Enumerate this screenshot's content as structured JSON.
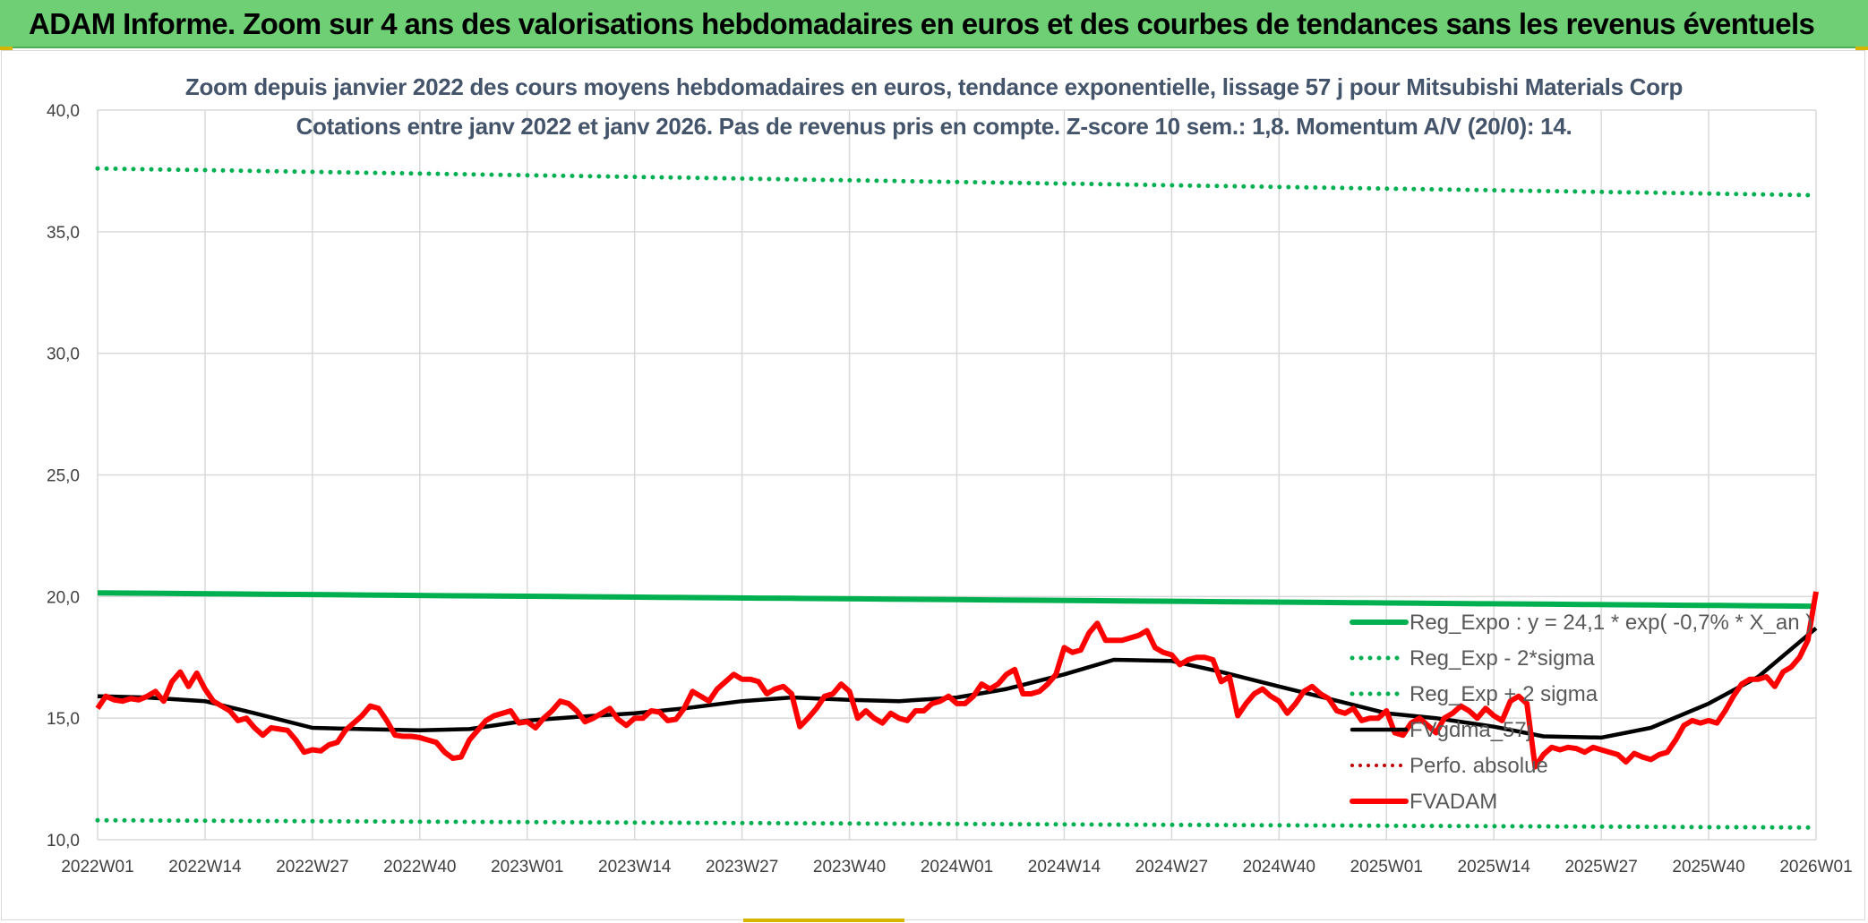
{
  "header": {
    "title": "ADAM Informe. Zoom sur 4 ans des valorisations hebdomadaires en euros et des courbes de tendances sans les revenus éventuels"
  },
  "chart_data": {
    "type": "line",
    "title": "Zoom depuis janvier 2022 des cours moyens hebdomadaires en euros, tendance exponentielle, lissage 57 j pour Mitsubishi Materials Corp",
    "subtitle": "Cotations entre janv 2022 et janv 2026. Pas de revenus pris en compte. Z-score 10 sem.: 1,8. Momentum A/V (20/0): 14.",
    "ylim": [
      10,
      40
    ],
    "yticks": [
      "10,0",
      "15,0",
      "20,0",
      "25,0",
      "30,0",
      "35,0",
      "40,0"
    ],
    "xticks": [
      "2022W01",
      "2022W14",
      "2022W27",
      "2022W40",
      "2023W01",
      "2023W14",
      "2023W27",
      "2023W40",
      "2024W01",
      "2024W14",
      "2024W27",
      "2024W40",
      "2025W01",
      "2025W14",
      "2025W27",
      "2025W40",
      "2026W01"
    ],
    "week_count": 209,
    "grid": true,
    "legend_position": "right",
    "colors": {
      "reg_expo": "#00b050",
      "sigma": "#00b050",
      "fvgdma": "#000000",
      "perfo": "#c00000",
      "fvadam": "#ff0000",
      "grid": "#d9d9d9"
    },
    "series": [
      {
        "name": "Reg_Expo : y = 24,1 * exp( -0,7% *  X_an )",
        "style": "solid-thick",
        "start": 20.15,
        "end": 19.6
      },
      {
        "name": "Reg_Exp - 2*sigma",
        "style": "dotted",
        "start": 10.8,
        "end": 10.5
      },
      {
        "name": "Reg_Exp + 2 sigma",
        "style": "dotted",
        "start": 37.6,
        "end": 36.5
      },
      {
        "name": "FVgdma_57j",
        "style": "solid-medium",
        "points": [
          [
            0,
            15.9
          ],
          [
            6,
            15.85
          ],
          [
            13,
            15.7
          ],
          [
            19,
            15.2
          ],
          [
            26,
            14.6
          ],
          [
            32,
            14.55
          ],
          [
            39,
            14.5
          ],
          [
            45,
            14.55
          ],
          [
            52,
            14.9
          ],
          [
            58,
            15.05
          ],
          [
            65,
            15.2
          ],
          [
            71,
            15.4
          ],
          [
            78,
            15.7
          ],
          [
            84,
            15.85
          ],
          [
            91,
            15.75
          ],
          [
            97,
            15.7
          ],
          [
            104,
            15.85
          ],
          [
            110,
            16.2
          ],
          [
            117,
            16.8
          ],
          [
            123,
            17.4
          ],
          [
            130,
            17.35
          ],
          [
            136,
            16.9
          ],
          [
            143,
            16.3
          ],
          [
            149,
            15.8
          ],
          [
            156,
            15.2
          ],
          [
            162,
            15.0
          ],
          [
            169,
            14.65
          ],
          [
            175,
            14.25
          ],
          [
            182,
            14.2
          ],
          [
            188,
            14.6
          ],
          [
            195,
            15.6
          ],
          [
            201,
            16.7
          ],
          [
            208,
            18.7
          ]
        ]
      },
      {
        "name": "Perfo. absolue",
        "style": "dotted-red",
        "points": []
      },
      {
        "name": "FVADAM",
        "style": "solid-thick-red",
        "points": [
          [
            0,
            15.4
          ],
          [
            1,
            15.9
          ],
          [
            2,
            15.75
          ],
          [
            3,
            15.7
          ],
          [
            4,
            15.8
          ],
          [
            5,
            15.75
          ],
          [
            6,
            15.9
          ],
          [
            7,
            16.1
          ],
          [
            8,
            15.7
          ],
          [
            9,
            16.5
          ],
          [
            10,
            16.9
          ],
          [
            11,
            16.3
          ],
          [
            12,
            16.85
          ],
          [
            13,
            16.2
          ],
          [
            14,
            15.7
          ],
          [
            15,
            15.5
          ],
          [
            16,
            15.3
          ],
          [
            17,
            14.9
          ],
          [
            18,
            15.0
          ],
          [
            19,
            14.6
          ],
          [
            20,
            14.3
          ],
          [
            21,
            14.6
          ],
          [
            22,
            14.55
          ],
          [
            23,
            14.5
          ],
          [
            24,
            14.1
          ],
          [
            25,
            13.6
          ],
          [
            26,
            13.7
          ],
          [
            27,
            13.65
          ],
          [
            28,
            13.9
          ],
          [
            29,
            14.0
          ],
          [
            30,
            14.5
          ],
          [
            31,
            14.8
          ],
          [
            32,
            15.1
          ],
          [
            33,
            15.5
          ],
          [
            34,
            15.4
          ],
          [
            35,
            14.9
          ],
          [
            36,
            14.3
          ],
          [
            37,
            14.25
          ],
          [
            38,
            14.25
          ],
          [
            39,
            14.2
          ],
          [
            40,
            14.1
          ],
          [
            41,
            14.0
          ],
          [
            42,
            13.6
          ],
          [
            43,
            13.35
          ],
          [
            44,
            13.4
          ],
          [
            45,
            14.1
          ],
          [
            46,
            14.5
          ],
          [
            47,
            14.9
          ],
          [
            48,
            15.1
          ],
          [
            49,
            15.2
          ],
          [
            50,
            15.3
          ],
          [
            51,
            14.8
          ],
          [
            52,
            14.85
          ],
          [
            53,
            14.6
          ],
          [
            54,
            15.0
          ],
          [
            55,
            15.3
          ],
          [
            56,
            15.7
          ],
          [
            57,
            15.6
          ],
          [
            58,
            15.3
          ],
          [
            59,
            14.85
          ],
          [
            60,
            15.0
          ],
          [
            61,
            15.2
          ],
          [
            62,
            15.4
          ],
          [
            63,
            14.95
          ],
          [
            64,
            14.7
          ],
          [
            65,
            15.0
          ],
          [
            66,
            15.0
          ],
          [
            67,
            15.3
          ],
          [
            68,
            15.25
          ],
          [
            69,
            14.9
          ],
          [
            70,
            14.95
          ],
          [
            71,
            15.4
          ],
          [
            72,
            16.1
          ],
          [
            73,
            15.9
          ],
          [
            74,
            15.7
          ],
          [
            75,
            16.2
          ],
          [
            76,
            16.5
          ],
          [
            77,
            16.8
          ],
          [
            78,
            16.6
          ],
          [
            79,
            16.6
          ],
          [
            80,
            16.5
          ],
          [
            81,
            16.0
          ],
          [
            82,
            16.2
          ],
          [
            83,
            16.3
          ],
          [
            84,
            16.0
          ],
          [
            85,
            14.65
          ],
          [
            86,
            15.0
          ],
          [
            87,
            15.4
          ],
          [
            88,
            15.9
          ],
          [
            89,
            16.0
          ],
          [
            90,
            16.4
          ],
          [
            91,
            16.1
          ],
          [
            92,
            15.0
          ],
          [
            93,
            15.3
          ],
          [
            94,
            15.0
          ],
          [
            95,
            14.8
          ],
          [
            96,
            15.2
          ],
          [
            97,
            15.0
          ],
          [
            98,
            14.9
          ],
          [
            99,
            15.3
          ],
          [
            100,
            15.3
          ],
          [
            101,
            15.6
          ],
          [
            102,
            15.7
          ],
          [
            103,
            15.9
          ],
          [
            104,
            15.6
          ],
          [
            105,
            15.6
          ],
          [
            106,
            15.9
          ],
          [
            107,
            16.4
          ],
          [
            108,
            16.2
          ],
          [
            109,
            16.4
          ],
          [
            110,
            16.8
          ],
          [
            111,
            17.0
          ],
          [
            112,
            16.0
          ],
          [
            113,
            16.0
          ],
          [
            114,
            16.1
          ],
          [
            115,
            16.4
          ],
          [
            116,
            16.8
          ],
          [
            117,
            17.9
          ],
          [
            118,
            17.7
          ],
          [
            119,
            17.8
          ],
          [
            120,
            18.5
          ],
          [
            121,
            18.9
          ],
          [
            122,
            18.2
          ],
          [
            123,
            18.2
          ],
          [
            124,
            18.2
          ],
          [
            125,
            18.3
          ],
          [
            126,
            18.4
          ],
          [
            127,
            18.6
          ],
          [
            128,
            17.9
          ],
          [
            129,
            17.7
          ],
          [
            130,
            17.6
          ],
          [
            131,
            17.2
          ],
          [
            132,
            17.4
          ],
          [
            133,
            17.5
          ],
          [
            134,
            17.5
          ],
          [
            135,
            17.4
          ],
          [
            136,
            16.5
          ],
          [
            137,
            16.7
          ],
          [
            138,
            15.1
          ],
          [
            139,
            15.6
          ],
          [
            140,
            16.0
          ],
          [
            141,
            16.2
          ],
          [
            142,
            15.9
          ],
          [
            143,
            15.7
          ],
          [
            144,
            15.2
          ],
          [
            145,
            15.6
          ],
          [
            146,
            16.1
          ],
          [
            147,
            16.3
          ],
          [
            148,
            16.0
          ],
          [
            149,
            15.8
          ],
          [
            150,
            15.3
          ],
          [
            151,
            15.2
          ],
          [
            152,
            15.4
          ],
          [
            153,
            14.9
          ],
          [
            154,
            15.0
          ],
          [
            155,
            15.0
          ],
          [
            156,
            15.3
          ],
          [
            157,
            14.4
          ],
          [
            158,
            14.3
          ],
          [
            159,
            14.8
          ],
          [
            160,
            15.0
          ],
          [
            161,
            14.7
          ],
          [
            162,
            14.4
          ],
          [
            163,
            15.0
          ],
          [
            164,
            15.2
          ],
          [
            165,
            15.5
          ],
          [
            166,
            15.3
          ],
          [
            167,
            15.0
          ],
          [
            168,
            15.4
          ],
          [
            169,
            15.1
          ],
          [
            170,
            14.9
          ],
          [
            171,
            15.7
          ],
          [
            172,
            15.9
          ],
          [
            173,
            15.6
          ],
          [
            174,
            13.0
          ],
          [
            175,
            13.5
          ],
          [
            176,
            13.8
          ],
          [
            177,
            13.7
          ],
          [
            178,
            13.8
          ],
          [
            179,
            13.75
          ],
          [
            180,
            13.6
          ],
          [
            181,
            13.8
          ],
          [
            182,
            13.7
          ],
          [
            183,
            13.6
          ],
          [
            184,
            13.5
          ],
          [
            185,
            13.2
          ],
          [
            186,
            13.55
          ],
          [
            187,
            13.4
          ],
          [
            188,
            13.3
          ],
          [
            189,
            13.5
          ],
          [
            190,
            13.6
          ],
          [
            191,
            14.1
          ],
          [
            192,
            14.7
          ],
          [
            193,
            14.9
          ],
          [
            194,
            14.8
          ],
          [
            195,
            14.9
          ],
          [
            196,
            14.8
          ],
          [
            197,
            15.3
          ],
          [
            198,
            15.9
          ],
          [
            199,
            16.4
          ],
          [
            200,
            16.6
          ],
          [
            201,
            16.6
          ],
          [
            202,
            16.7
          ],
          [
            203,
            16.3
          ],
          [
            204,
            16.9
          ],
          [
            205,
            17.1
          ],
          [
            206,
            17.5
          ],
          [
            207,
            18.2
          ],
          [
            208,
            20.2
          ]
        ]
      }
    ]
  }
}
